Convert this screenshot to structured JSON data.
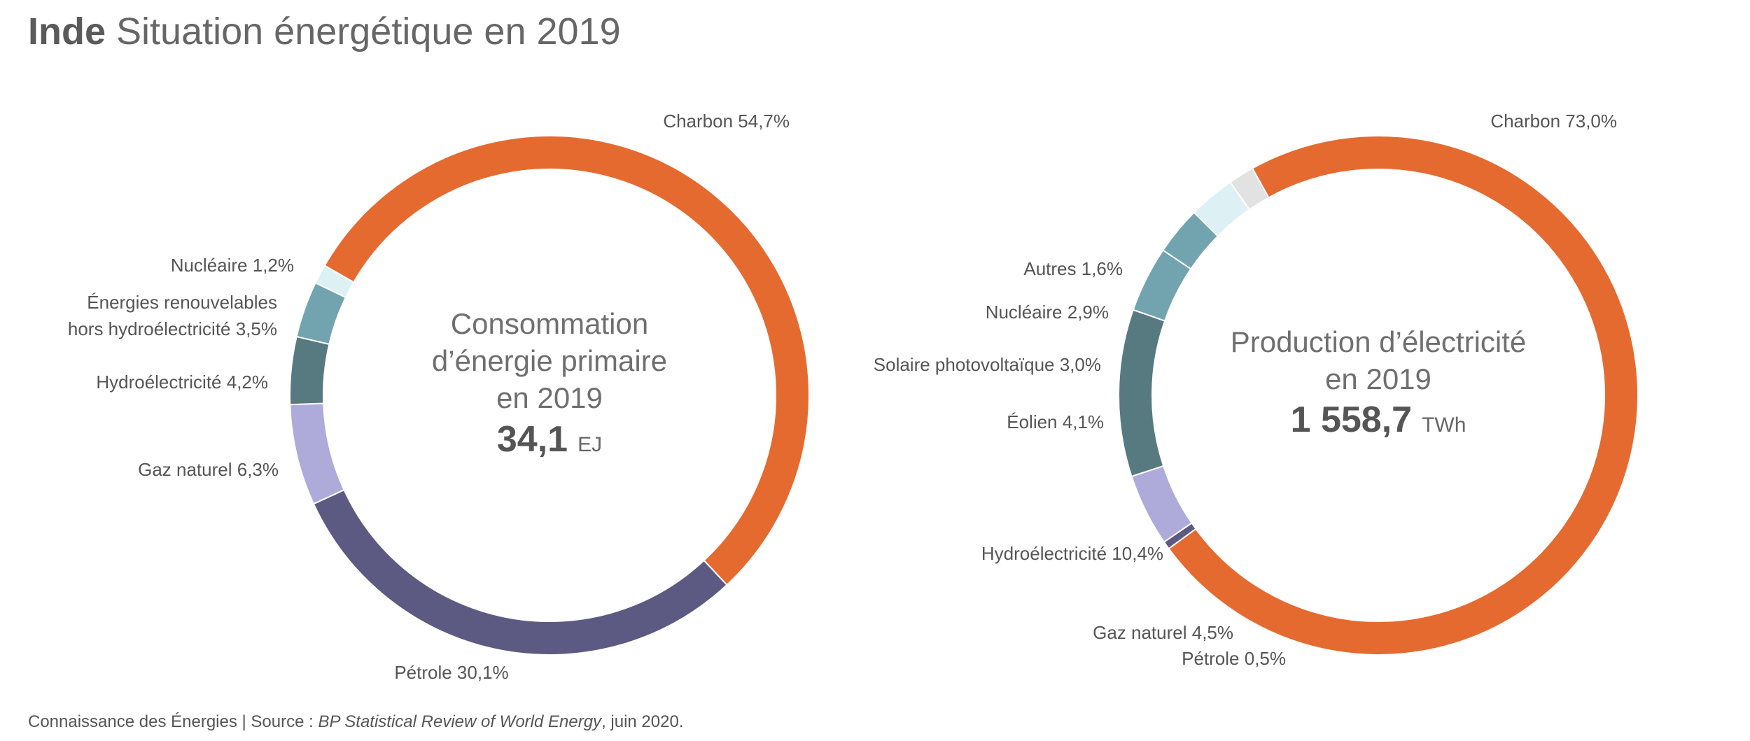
{
  "title": {
    "bold": "Inde",
    "rest": "Situation énergétique en 2019"
  },
  "chart_data": [
    {
      "type": "pie",
      "style": "donut",
      "center": {
        "lines": [
          "Consommation",
          "d’énergie primaire",
          "en 2019"
        ],
        "value": "34,1",
        "unit": "EJ"
      },
      "slices": [
        {
          "name": "Charbon",
          "value": 54.7,
          "label": "Charbon 54,7%",
          "color": "#E56A30"
        },
        {
          "name": "Pétrole",
          "value": 30.1,
          "label": "Pétrole 30,1%",
          "color": "#5C5A82"
        },
        {
          "name": "Gaz naturel",
          "value": 6.3,
          "label": "Gaz naturel 6,3%",
          "color": "#AEAADA"
        },
        {
          "name": "Hydroélectricité",
          "value": 4.2,
          "label": "Hydroélectricité 4,2%",
          "color": "#567A80"
        },
        {
          "name": "Énergies renouvelables hors hydroélectricité",
          "value": 3.5,
          "label": [
            "Énergies renouvelables",
            "hors hydroélectricité 3,5%"
          ],
          "color": "#72A4B0"
        },
        {
          "name": "Nucléaire",
          "value": 1.2,
          "label": "Nucléaire 1,2%",
          "color": "#DDF1F4"
        }
      ]
    },
    {
      "type": "pie",
      "style": "donut",
      "center": {
        "lines": [
          "Production d’électricité",
          "en 2019"
        ],
        "value": "1 558,7",
        "unit": "TWh"
      },
      "slices": [
        {
          "name": "Charbon",
          "value": 73.0,
          "label": "Charbon 73,0%",
          "color": "#E56A30"
        },
        {
          "name": "Pétrole",
          "value": 0.5,
          "label": "Pétrole 0,5%",
          "color": "#5C5A82"
        },
        {
          "name": "Gaz naturel",
          "value": 4.5,
          "label": "Gaz naturel 4,5%",
          "color": "#AEAADA"
        },
        {
          "name": "Hydroélectricité",
          "value": 10.4,
          "label": "Hydroélectricité 10,4%",
          "color": "#567A80"
        },
        {
          "name": "Éolien",
          "value": 4.1,
          "label": "Éolien 4,1%",
          "color": "#72A4B0"
        },
        {
          "name": "Solaire photovoltaïque",
          "value": 3.0,
          "label": "Solaire photovoltaïque 3,0%",
          "color": "#72A4B0"
        },
        {
          "name": "Nucléaire",
          "value": 2.9,
          "label": "Nucléaire 2,9%",
          "color": "#DDF1F4"
        },
        {
          "name": "Autres",
          "value": 1.6,
          "label": "Autres 1,6%",
          "color": "#E2E2E2"
        }
      ]
    }
  ],
  "footer": {
    "prefix": "Connaissance des Énergies | Source : ",
    "source": "BP Statistical Review of World Energy",
    "suffix": ", juin 2020."
  }
}
